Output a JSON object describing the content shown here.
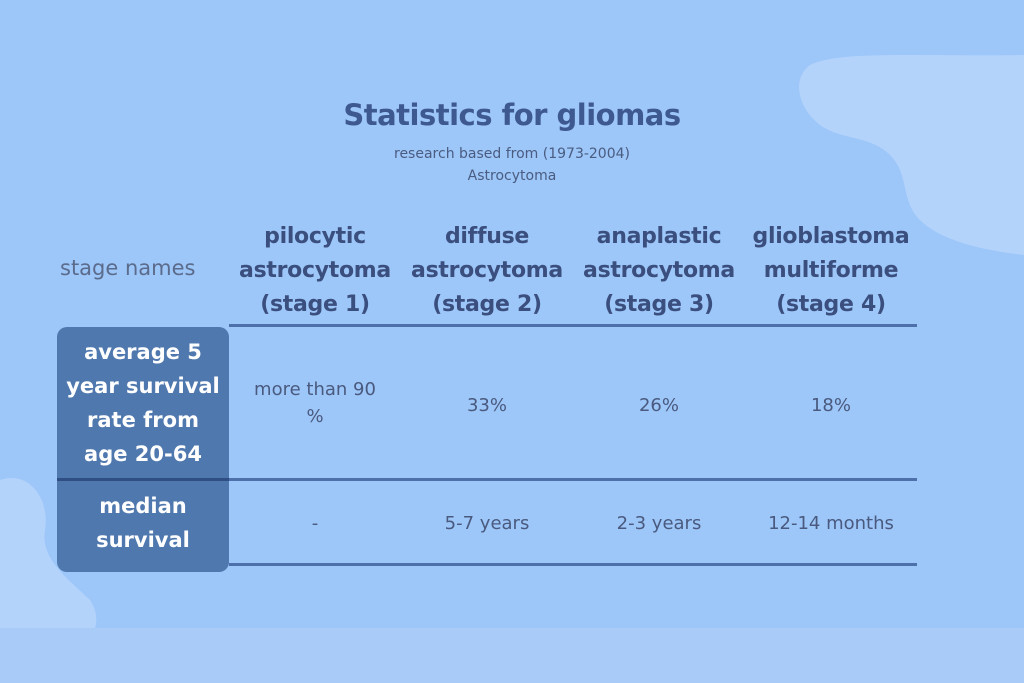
{
  "slide": {
    "title": "Statistics for gliomas",
    "subtitle": "research based from (1973-2004)",
    "type_label": "Astrocytoma"
  },
  "table": {
    "row_header_label": "stage names",
    "columns": [
      {
        "line1": "pilocytic",
        "line2": "astrocytoma",
        "line3": "(stage 1)"
      },
      {
        "line1": "diffuse",
        "line2": "astrocytoma",
        "line3": "(stage 2)"
      },
      {
        "line1": "anaplastic",
        "line2": "astrocytoma",
        "line3": "(stage 3)"
      },
      {
        "line1": "glioblastoma",
        "line2": "multiforme",
        "line3": "(stage 4)"
      }
    ],
    "rows": [
      {
        "label_lines": [
          "average 5",
          "year survival",
          "rate from",
          "age 20-64"
        ],
        "cells": [
          {
            "line1": "more than 90",
            "line2": "%"
          },
          {
            "line1": "33%"
          },
          {
            "line1": "26%"
          },
          {
            "line1": "18%"
          }
        ]
      },
      {
        "label_lines": [
          "median",
          "survival"
        ],
        "cells": [
          {
            "line1": "-"
          },
          {
            "line1": "5-7 years"
          },
          {
            "line1": "2-3 years"
          },
          {
            "line1": "12-14 months"
          }
        ]
      }
    ]
  },
  "colors": {
    "background": "#9dc6f9",
    "header_text": "#3b4f7f",
    "row_label_fill": "#4f78af",
    "rule_line": "#4d6faa"
  }
}
